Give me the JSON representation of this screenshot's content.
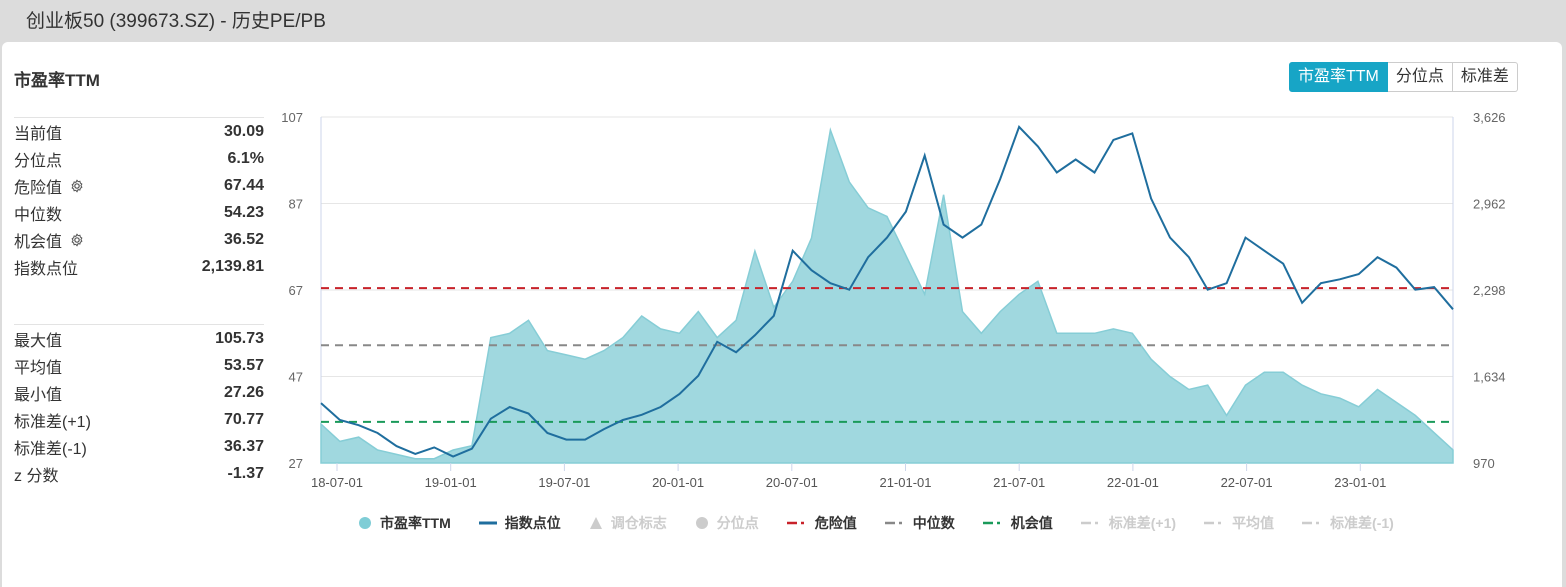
{
  "window": {
    "title": "创业板50 (399673.SZ) - 历史PE/PB"
  },
  "section": {
    "title": "市盈率TTM"
  },
  "toggle": {
    "buttons": [
      {
        "label": "市盈率TTM",
        "active": true
      },
      {
        "label": "分位点",
        "active": false
      },
      {
        "label": "标准差",
        "active": false
      }
    ]
  },
  "stats_top": [
    {
      "label": "当前值",
      "value": "30.09",
      "gear": false
    },
    {
      "label": "分位点",
      "value": "6.1%",
      "gear": false
    },
    {
      "label": "危险值",
      "value": "67.44",
      "gear": true
    },
    {
      "label": "中位数",
      "value": "54.23",
      "gear": false
    },
    {
      "label": "机会值",
      "value": "36.52",
      "gear": true
    },
    {
      "label": "指数点位",
      "value": "2,139.81",
      "gear": false
    }
  ],
  "stats_bottom": [
    {
      "label": "最大值",
      "value": "105.73"
    },
    {
      "label": "平均值",
      "value": "53.57"
    },
    {
      "label": "最小值",
      "value": "27.26"
    },
    {
      "label": "标准差(+1)",
      "value": "70.77"
    },
    {
      "label": "标准差(-1)",
      "value": "36.37"
    },
    {
      "label": "z 分数",
      "value": "-1.37"
    }
  ],
  "legend": [
    {
      "label": "市盈率TTM",
      "symbol": "circle",
      "color": "#7fcdd6",
      "enabled": true
    },
    {
      "label": "指数点位",
      "symbol": "line",
      "color": "#1f6e9e",
      "enabled": true
    },
    {
      "label": "调仓标志",
      "symbol": "triangle",
      "color": "#cccccc",
      "enabled": false
    },
    {
      "label": "分位点",
      "symbol": "circle",
      "color": "#cccccc",
      "enabled": false
    },
    {
      "label": "危险值",
      "symbol": "dash",
      "color": "#c8222a",
      "enabled": true
    },
    {
      "label": "中位数",
      "symbol": "dash",
      "color": "#888888",
      "enabled": true
    },
    {
      "label": "机会值",
      "symbol": "dash",
      "color": "#1a9a5a",
      "enabled": true
    },
    {
      "label": "标准差(+1)",
      "symbol": "dash",
      "color": "#cccccc",
      "enabled": false
    },
    {
      "label": "平均值",
      "symbol": "dash",
      "color": "#cccccc",
      "enabled": false
    },
    {
      "label": "标准差(-1)",
      "symbol": "dash",
      "color": "#cccccc",
      "enabled": false
    }
  ],
  "chart_data": {
    "type": "area",
    "title": "市盈率TTM",
    "xlabel": "",
    "ylabel": "",
    "x_ticks": [
      "18-07-01",
      "19-01-01",
      "19-07-01",
      "20-01-01",
      "20-07-01",
      "21-01-01",
      "21-07-01",
      "22-01-01",
      "22-07-01",
      "23-01-01"
    ],
    "y_left": {
      "ticks": [
        27,
        47,
        67,
        87,
        107
      ],
      "range": [
        27,
        107
      ]
    },
    "y_right": {
      "ticks": [
        "970",
        "1,634",
        "2,298",
        "2,962",
        "3,626"
      ],
      "range": [
        970,
        3626
      ]
    },
    "grid": true,
    "legend_position": "bottom",
    "reference_lines": [
      {
        "name": "危险值",
        "value": 67.44,
        "color": "#c8222a"
      },
      {
        "name": "中位数",
        "value": 54.23,
        "color": "#888888"
      },
      {
        "name": "机会值",
        "value": 36.52,
        "color": "#1a9a5a"
      }
    ],
    "x": [
      "18-06",
      "18-07",
      "18-08",
      "18-09",
      "18-10",
      "18-11",
      "18-12",
      "19-01",
      "19-02",
      "19-03",
      "19-04",
      "19-05",
      "19-06",
      "19-07",
      "19-08",
      "19-09",
      "19-10",
      "19-11",
      "19-12",
      "20-01",
      "20-02",
      "20-03",
      "20-04",
      "20-05",
      "20-06",
      "20-07",
      "20-08",
      "20-09",
      "20-10",
      "20-11",
      "20-12",
      "21-01",
      "21-02",
      "21-03",
      "21-04",
      "21-05",
      "21-06",
      "21-07",
      "21-08",
      "21-09",
      "21-10",
      "21-11",
      "21-12",
      "22-01",
      "22-02",
      "22-03",
      "22-04",
      "22-05",
      "22-06",
      "22-07",
      "22-08",
      "22-09",
      "22-10",
      "22-11",
      "22-12",
      "23-01",
      "23-02",
      "23-03",
      "23-04",
      "23-05",
      "23-06"
    ],
    "series": [
      {
        "name": "市盈率TTM",
        "axis": "left",
        "color": "#7fcdd6",
        "values": [
          36,
          32,
          33,
          30,
          29,
          28,
          28,
          30,
          31,
          56,
          57,
          60,
          53,
          52,
          51,
          53,
          56,
          61,
          58,
          57,
          62,
          56,
          60,
          76,
          63,
          69,
          79,
          104,
          92,
          86,
          84,
          75,
          66,
          89,
          62,
          57,
          62,
          66,
          69,
          57,
          57,
          57,
          58,
          57,
          51,
          47,
          44,
          45,
          38,
          45,
          48,
          48,
          45,
          43,
          42,
          40,
          44,
          41,
          38,
          34,
          30
        ]
      },
      {
        "name": "指数点位",
        "axis": "right",
        "color": "#1f6e9e",
        "values": [
          1430,
          1300,
          1260,
          1200,
          1100,
          1040,
          1090,
          1020,
          1080,
          1310,
          1400,
          1350,
          1200,
          1150,
          1150,
          1230,
          1300,
          1340,
          1400,
          1500,
          1640,
          1900,
          1820,
          1950,
          2100,
          2600,
          2450,
          2350,
          2300,
          2550,
          2700,
          2900,
          3330,
          2800,
          2700,
          2800,
          3150,
          3550,
          3400,
          3200,
          3300,
          3200,
          3450,
          3500,
          3000,
          2700,
          2550,
          2300,
          2350,
          2700,
          2600,
          2500,
          2200,
          2350,
          2380,
          2420,
          2550,
          2470,
          2300,
          2320,
          2150
        ]
      }
    ]
  }
}
